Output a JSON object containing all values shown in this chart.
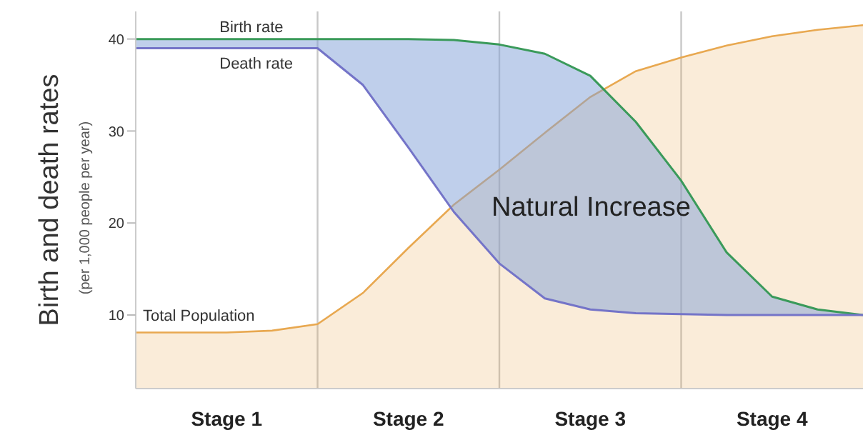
{
  "chart_data": {
    "type": "line",
    "ylabel": "Birth and death rates",
    "annotations": [
      "(per 1,000 people per year)",
      "Natural Increase"
    ],
    "categories": [
      null,
      null,
      "Stage 1",
      null,
      null,
      null,
      "Stage 2",
      null,
      null,
      null,
      "Stage 3",
      null,
      null,
      null,
      "Stage 4",
      null,
      null
    ],
    "series": [
      {
        "name": "Total Population",
        "type": "area",
        "color": "#e8a850",
        "values": [
          8.1,
          8.1,
          8.1,
          8.3,
          9,
          12.4,
          17.3,
          22,
          25.8,
          29.8,
          33.7,
          36.5,
          38,
          39.3,
          40.3,
          41,
          41.5
        ]
      },
      {
        "name": "Birth rate",
        "color": "#3a9a5a",
        "values": [
          40,
          40,
          40,
          40,
          40,
          40,
          40,
          39.9,
          39.4,
          38.4,
          36,
          31,
          24.6,
          16.8,
          12,
          10.6,
          10
        ]
      },
      {
        "name": "Death rate",
        "color": "#7474c8",
        "values": [
          39,
          39,
          39,
          39,
          39,
          35,
          28.2,
          21.2,
          15.6,
          11.8,
          10.6,
          10.2,
          10.1,
          10,
          10,
          10,
          10
        ]
      }
    ],
    "ylim": [
      2,
      43
    ],
    "yticks": [
      10,
      20,
      30,
      40
    ],
    "grid": "x",
    "marker": "none",
    "line_style": "solid"
  }
}
